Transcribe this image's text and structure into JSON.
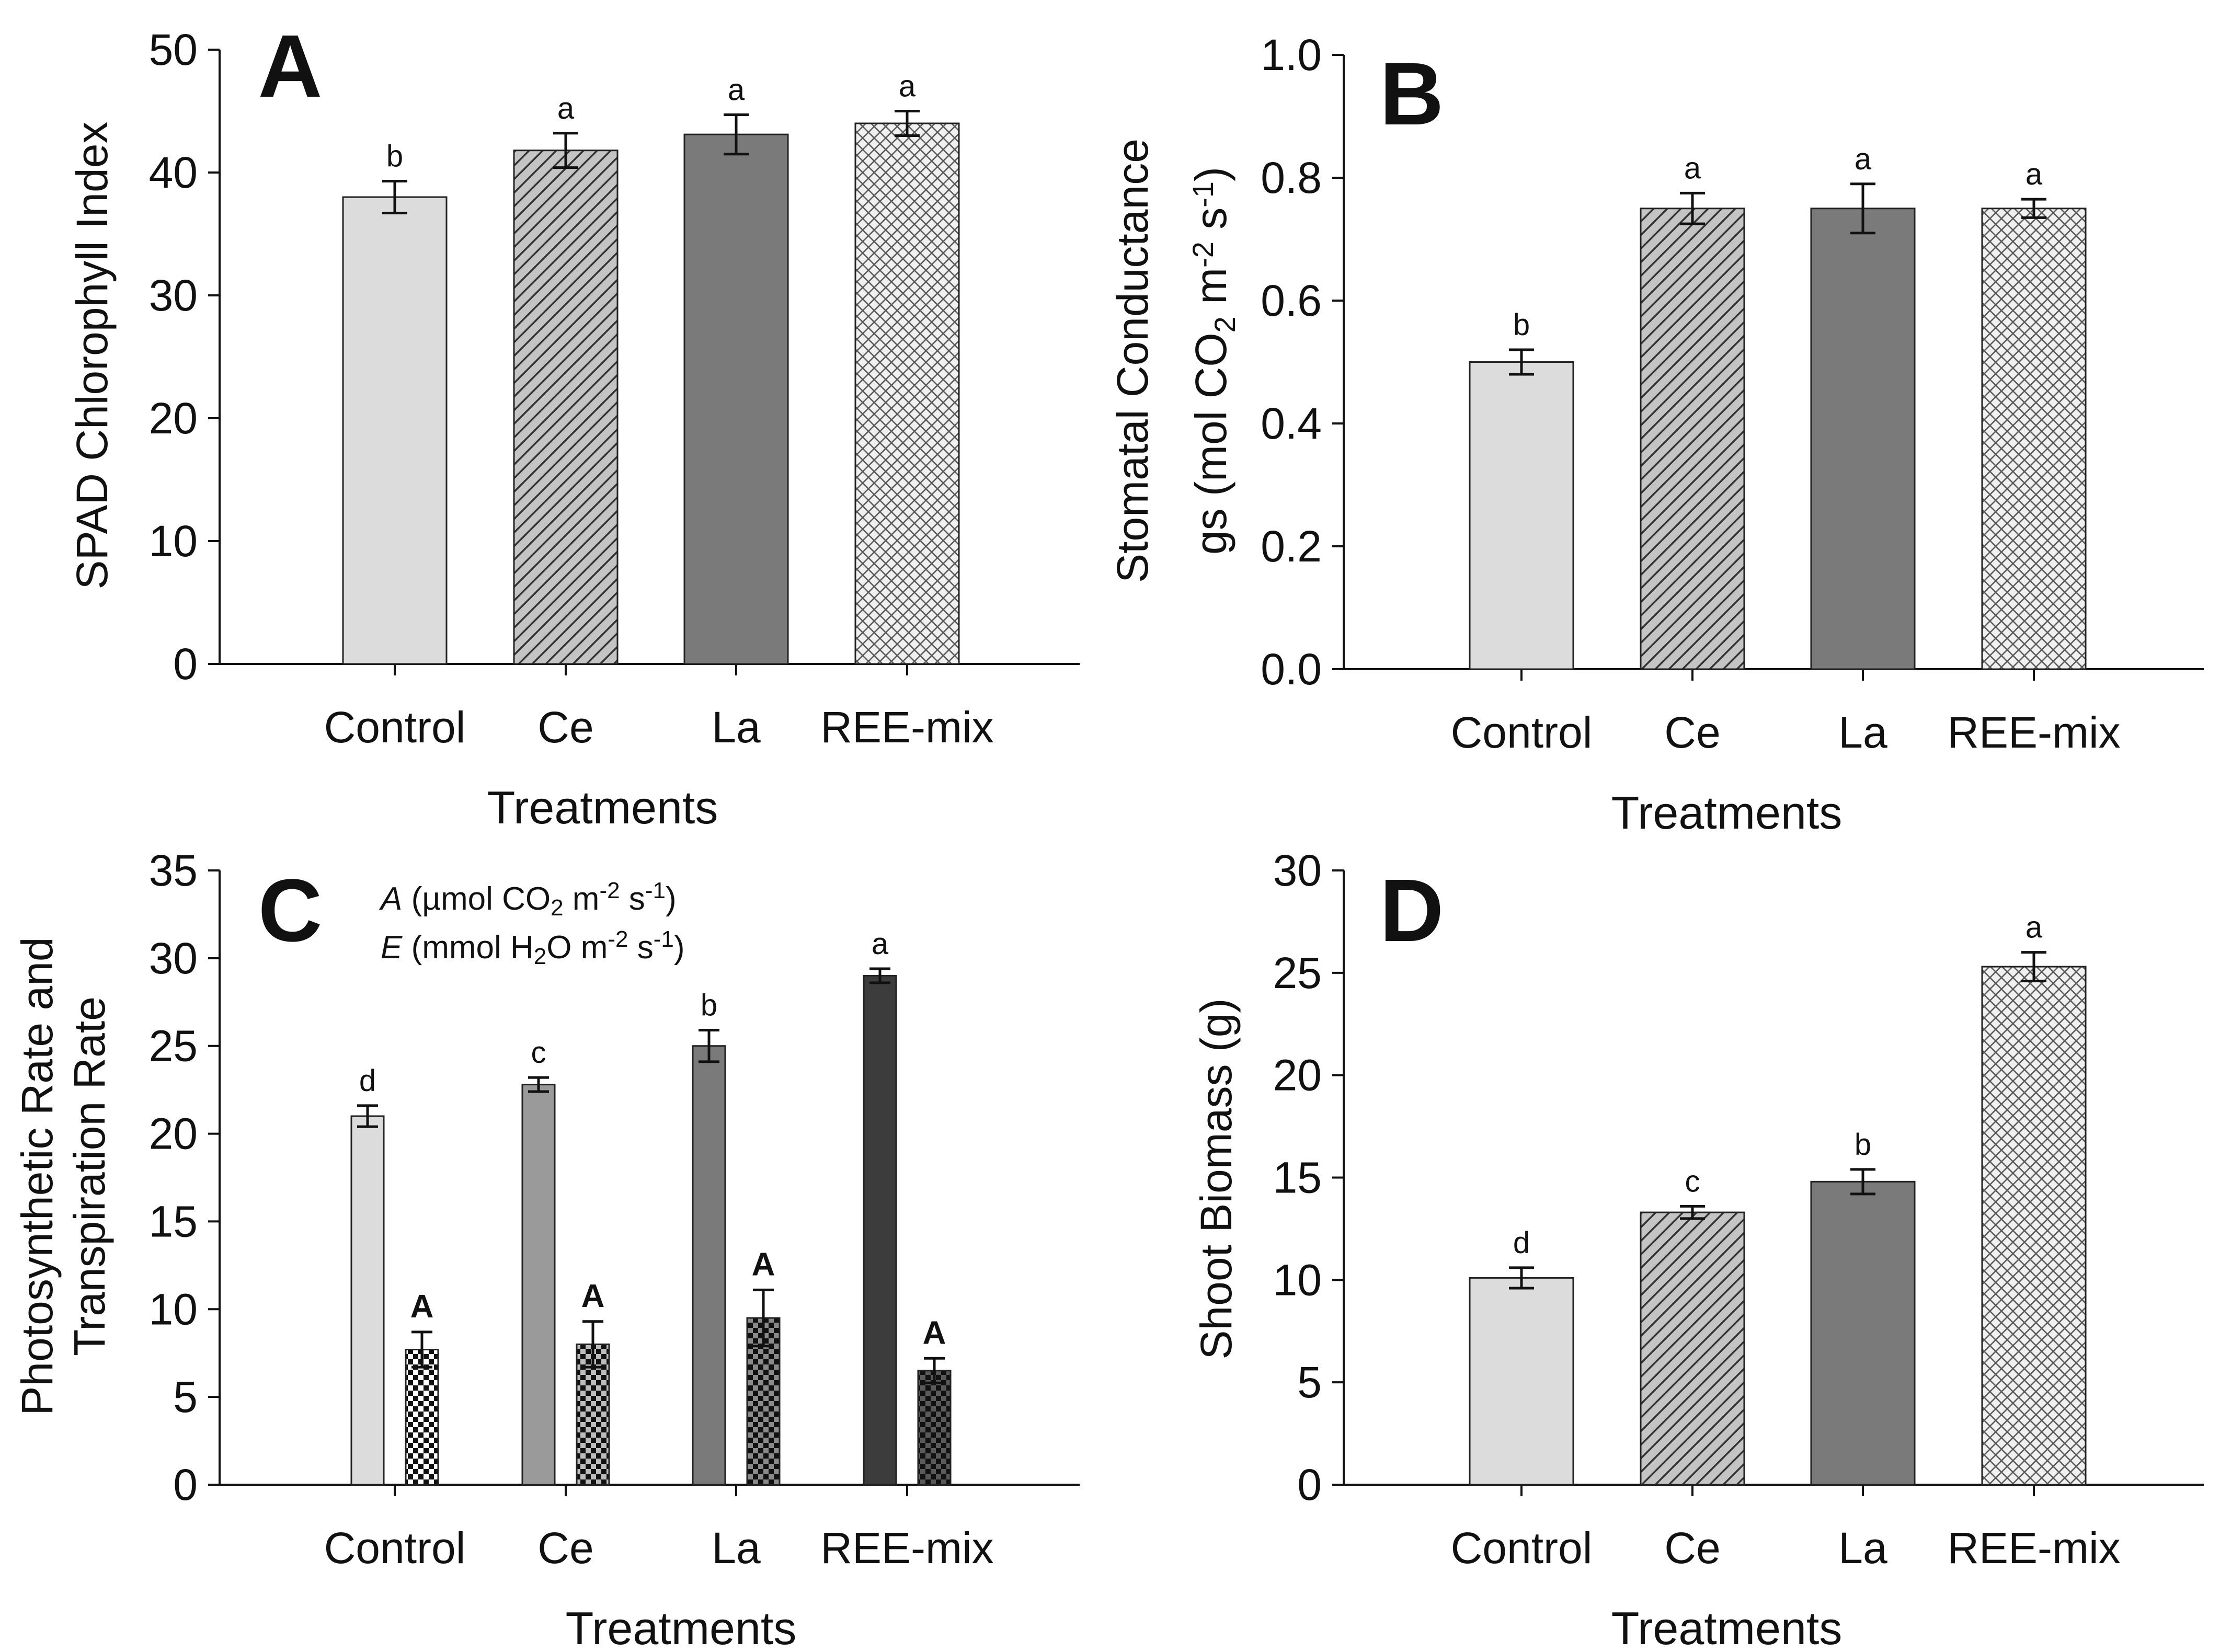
{
  "colors": {
    "bar_light": "#dcdcdc",
    "bar_mid": "#999999",
    "bar_dark": "#7a7a7a",
    "bar_darkest": "#3c3c3c",
    "edge": "#222222"
  },
  "chart_data": [
    {
      "id": "A",
      "type": "bar",
      "panel_letter": "A",
      "categories": [
        "Control",
        "Ce",
        "La",
        "REE-mix"
      ],
      "ylabel": "SPAD Chlorophyll Index",
      "xlabel": "Treatments",
      "ylim": [
        0,
        50
      ],
      "yticks": [
        "0",
        "10",
        "20",
        "30",
        "40",
        "50"
      ],
      "series": [
        {
          "values": [
            38.0,
            41.8,
            43.1,
            44.0
          ],
          "errors": [
            1.3,
            1.4,
            1.6,
            1.0
          ],
          "letters": [
            "b",
            "a",
            "a",
            "a"
          ],
          "patterns": [
            "solid-light",
            "hatch",
            "solid-dark",
            "crosshatch"
          ]
        }
      ]
    },
    {
      "id": "B",
      "type": "bar",
      "panel_letter": "B",
      "categories": [
        "Control",
        "Ce",
        "La",
        "REE-mix"
      ],
      "ylabel_line1": "Stomatal Conductance",
      "ylabel_line2": "gs (mol CO2 m-2 s-1)",
      "xlabel": "Treatments",
      "ylim": [
        0,
        1.0
      ],
      "yticks": [
        "0.0",
        "0.2",
        "0.4",
        "0.6",
        "0.8",
        "1.0"
      ],
      "series": [
        {
          "values": [
            0.5,
            0.75,
            0.75,
            0.75
          ],
          "errors": [
            0.02,
            0.025,
            0.04,
            0.015
          ],
          "letters": [
            "b",
            "a",
            "a",
            "a"
          ],
          "patterns": [
            "solid-light",
            "hatch",
            "solid-dark",
            "crosshatch"
          ]
        }
      ]
    },
    {
      "id": "C",
      "type": "bar",
      "panel_letter": "C",
      "categories": [
        "Control",
        "Ce",
        "La",
        "REE-mix"
      ],
      "ylabel_line1": "Photosynthetic Rate and",
      "ylabel_line2": "Transpiration Rate",
      "xlabel": "Treatments",
      "ylim": [
        0,
        35
      ],
      "yticks": [
        "0",
        "5",
        "10",
        "15",
        "20",
        "25",
        "30",
        "35"
      ],
      "legend_line1": "A (µmol CO2 m-2 s-1)",
      "legend_line2": "E (mmol H2O m-2 s-1)",
      "series": [
        {
          "values": [
            21.0,
            22.8,
            25.0,
            29.0
          ],
          "errors": [
            0.6,
            0.4,
            0.9,
            0.4
          ],
          "letters": [
            "d",
            "c",
            "b",
            "a"
          ],
          "fills": [
            "#dcdcdc",
            "#9a9a9a",
            "#7a7a7a",
            "#3c3c3c"
          ]
        },
        {
          "values": [
            7.7,
            8.0,
            9.5,
            6.5
          ],
          "errors": [
            1.0,
            1.3,
            1.6,
            0.7
          ],
          "letters": [
            "A",
            "A",
            "A",
            "A"
          ],
          "fills": [
            "#ffffff",
            "#cccccc",
            "#888888",
            "#444444"
          ]
        }
      ]
    },
    {
      "id": "D",
      "type": "bar",
      "panel_letter": "D",
      "categories": [
        "Control",
        "Ce",
        "La",
        "REE-mix"
      ],
      "ylabel": "Shoot Biomass (g)",
      "xlabel": "Treatments",
      "ylim": [
        0,
        30
      ],
      "yticks": [
        "0",
        "5",
        "10",
        "15",
        "20",
        "25",
        "30"
      ],
      "series": [
        {
          "values": [
            10.1,
            13.3,
            14.8,
            25.3
          ],
          "errors": [
            0.5,
            0.3,
            0.6,
            0.7
          ],
          "letters": [
            "d",
            "c",
            "b",
            "a"
          ],
          "patterns": [
            "solid-light",
            "hatch",
            "solid-dark",
            "crosshatch"
          ]
        }
      ]
    }
  ]
}
